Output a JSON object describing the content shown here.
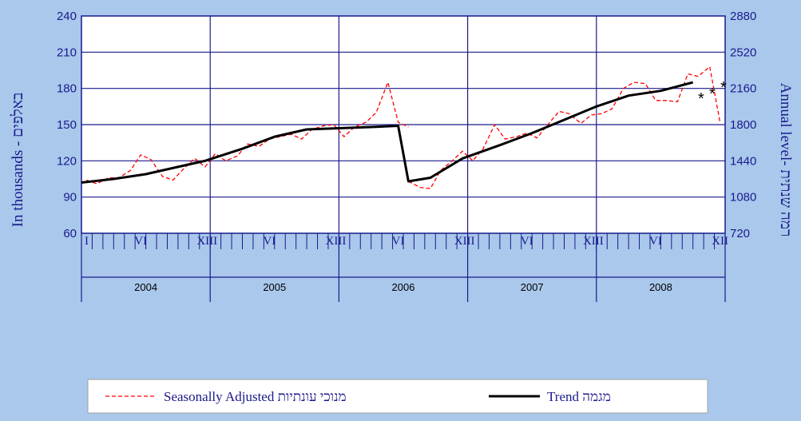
{
  "chart_data": {
    "type": "line",
    "ylabel_left": "In thousands - באלפים",
    "ylabel_right": "Annual level- רמה שנתית",
    "ylim_left": [
      60,
      240
    ],
    "ylim_right": [
      720,
      2880
    ],
    "yticks_left": [
      60,
      90,
      120,
      150,
      180,
      210,
      240
    ],
    "yticks_right": [
      720,
      1080,
      1440,
      1800,
      2160,
      2520,
      2880
    ],
    "years": [
      "2004",
      "2005",
      "2006",
      "2007",
      "2008"
    ],
    "month_labels": [
      "I",
      "VI",
      "XII"
    ],
    "x_start": 2004.0,
    "x_end": 2009.0,
    "grid": true,
    "legend_position": "bottom",
    "series": [
      {
        "name": "Seasonally Adjusted מנוכי עונתיות",
        "style": "dashed",
        "color": "#ff0000",
        "points": [
          [
            2004.04,
            104
          ],
          [
            2004.12,
            101
          ],
          [
            2004.21,
            106
          ],
          [
            2004.29,
            106
          ],
          [
            2004.38,
            112
          ],
          [
            2004.46,
            125
          ],
          [
            2004.54,
            121
          ],
          [
            2004.63,
            107
          ],
          [
            2004.71,
            104
          ],
          [
            2004.79,
            113
          ],
          [
            2004.88,
            122
          ],
          [
            2004.96,
            115
          ],
          [
            2005.04,
            126
          ],
          [
            2005.12,
            120
          ],
          [
            2005.21,
            124
          ],
          [
            2005.29,
            134
          ],
          [
            2005.38,
            132
          ],
          [
            2005.46,
            138
          ],
          [
            2005.54,
            140
          ],
          [
            2005.63,
            142
          ],
          [
            2005.71,
            138
          ],
          [
            2005.79,
            146
          ],
          [
            2005.88,
            149
          ],
          [
            2005.96,
            150
          ],
          [
            2006.04,
            140
          ],
          [
            2006.12,
            148
          ],
          [
            2006.21,
            152
          ],
          [
            2006.29,
            160
          ],
          [
            2006.38,
            185
          ],
          [
            2006.46,
            152
          ],
          [
            2006.54,
            148
          ],
          [
            2006.54,
            103
          ],
          [
            2006.63,
            98
          ],
          [
            2006.71,
            97
          ],
          [
            2006.79,
            112
          ],
          [
            2006.88,
            120
          ],
          [
            2006.96,
            128
          ],
          [
            2007.04,
            120
          ],
          [
            2007.12,
            130
          ],
          [
            2007.21,
            150
          ],
          [
            2007.29,
            138
          ],
          [
            2007.38,
            140
          ],
          [
            2007.46,
            143
          ],
          [
            2007.54,
            139
          ],
          [
            2007.63,
            151
          ],
          [
            2007.71,
            161
          ],
          [
            2007.79,
            159
          ],
          [
            2007.88,
            151
          ],
          [
            2007.96,
            158
          ],
          [
            2008.04,
            159
          ],
          [
            2008.12,
            163
          ],
          [
            2008.21,
            180
          ],
          [
            2008.29,
            185
          ],
          [
            2008.38,
            184
          ],
          [
            2008.46,
            170
          ],
          [
            2008.54,
            170
          ],
          [
            2008.63,
            169
          ],
          [
            2008.71,
            192
          ],
          [
            2008.79,
            190
          ],
          [
            2008.88,
            198
          ],
          [
            2008.96,
            152
          ]
        ]
      },
      {
        "name": "Trend מגמה",
        "style": "solid",
        "color": "#000000",
        "points": [
          [
            2004.0,
            102
          ],
          [
            2004.25,
            105
          ],
          [
            2004.5,
            109
          ],
          [
            2004.75,
            115
          ],
          [
            2004.96,
            120
          ],
          [
            2005.25,
            130
          ],
          [
            2005.5,
            140
          ],
          [
            2005.75,
            146
          ],
          [
            2006.0,
            147
          ],
          [
            2006.25,
            148
          ],
          [
            2006.46,
            149
          ],
          [
            2006.54,
            103
          ],
          [
            2006.71,
            106
          ],
          [
            2006.96,
            122
          ],
          [
            2007.25,
            133
          ],
          [
            2007.5,
            143
          ],
          [
            2007.75,
            154
          ],
          [
            2008.0,
            165
          ],
          [
            2008.25,
            174
          ],
          [
            2008.5,
            178
          ],
          [
            2008.75,
            185
          ]
        ]
      }
    ],
    "annotations": [
      "*",
      "*",
      "*"
    ]
  }
}
